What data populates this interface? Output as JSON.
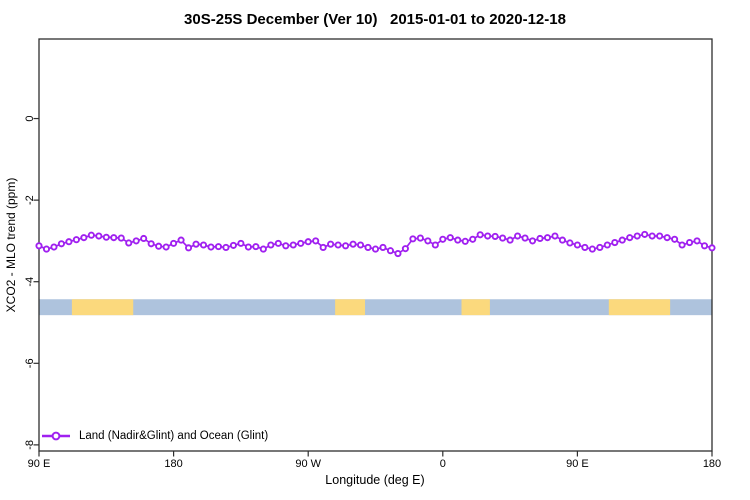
{
  "title": "30S-25S December (Ver 10)   2015-01-01 to 2020-12-18",
  "chart_data": {
    "type": "line",
    "title": "30S-25S December (Ver 10)   2015-01-01 to 2020-12-18",
    "xlabel": "Longitude (deg E)",
    "ylabel": "XCO2 - MLO trend (ppm)",
    "xlim": [
      90,
      540
    ],
    "ylim": [
      -8.15,
      1.95
    ],
    "grid": false,
    "legend_position": "bottom-left-inside",
    "x_tick_values": [
      90,
      180,
      270,
      360,
      450,
      540
    ],
    "x_tick_labels": [
      "90 E",
      "180",
      "90 W",
      "0",
      "90 E",
      "180"
    ],
    "y_tick_values": [
      0,
      -2,
      -4,
      -6,
      -8
    ],
    "y_tick_labels": [
      "0",
      "-2",
      "-4",
      "-6",
      "-8"
    ],
    "series": {
      "name": "Land (Nadir&Glint) and Ocean (Glint)",
      "color": "#A020F0",
      "marker": "open-circle",
      "x": [
        90,
        95,
        100,
        105,
        110,
        115,
        120,
        125,
        130,
        135,
        140,
        145,
        150,
        155,
        160,
        165,
        170,
        175,
        180,
        185,
        190,
        195,
        200,
        205,
        210,
        215,
        220,
        225,
        230,
        235,
        240,
        245,
        250,
        255,
        260,
        265,
        270,
        275,
        280,
        285,
        290,
        295,
        300,
        305,
        310,
        315,
        320,
        325,
        330,
        335,
        340,
        345,
        350,
        355,
        360,
        365,
        370,
        375,
        380,
        385,
        390,
        395,
        400,
        405,
        410,
        415,
        420,
        425,
        430,
        435,
        440,
        445,
        450,
        455,
        460,
        465,
        470,
        475,
        480,
        485,
        490,
        495,
        500,
        505,
        510,
        515,
        520,
        525,
        530,
        535,
        540
      ],
      "y": [
        -3.12,
        -3.2,
        -3.15,
        -3.07,
        -3.02,
        -2.97,
        -2.92,
        -2.86,
        -2.88,
        -2.91,
        -2.92,
        -2.93,
        -3.05,
        -3.0,
        -2.94,
        -3.07,
        -3.13,
        -3.15,
        -3.06,
        -2.98,
        -3.17,
        -3.08,
        -3.1,
        -3.15,
        -3.14,
        -3.16,
        -3.11,
        -3.06,
        -3.15,
        -3.14,
        -3.2,
        -3.1,
        -3.06,
        -3.12,
        -3.1,
        -3.06,
        -3.02,
        -3.0,
        -3.16,
        -3.08,
        -3.1,
        -3.12,
        -3.08,
        -3.1,
        -3.16,
        -3.2,
        -3.16,
        -3.24,
        -3.31,
        -3.19,
        -2.95,
        -2.93,
        -3.0,
        -3.1,
        -2.96,
        -2.92,
        -2.98,
        -3.01,
        -2.96,
        -2.85,
        -2.88,
        -2.89,
        -2.93,
        -2.98,
        -2.88,
        -2.93,
        -3.0,
        -2.94,
        -2.92,
        -2.88,
        -2.98,
        -3.05,
        -3.1,
        -3.16,
        -3.2,
        -3.16,
        -3.1,
        -3.04,
        -2.98,
        -2.92,
        -2.88,
        -2.84,
        -2.88,
        -2.88,
        -2.92,
        -2.96,
        -3.1,
        -3.04,
        -3.0,
        -3.12,
        -3.17
      ]
    },
    "surface_band": {
      "value_top": -4.43,
      "value_bottom": -4.82,
      "ocean_color": "#AEC3DD",
      "land_color": "#FBD97D",
      "land_segments_lon": [
        [
          112,
          153
        ],
        [
          288,
          308
        ],
        [
          372.5,
          391.5
        ],
        [
          471,
          512
        ]
      ]
    }
  },
  "legend": {
    "label": "Land (Nadir&Glint) and Ocean (Glint)"
  }
}
